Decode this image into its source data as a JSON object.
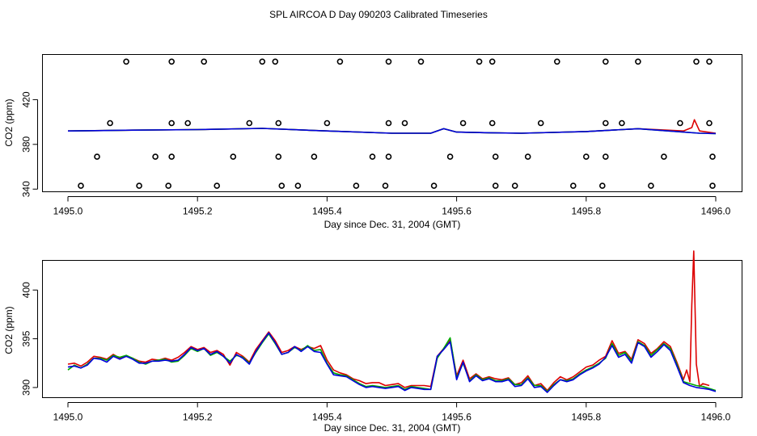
{
  "figure_title": "SPL AIRCOA D  Day 090203  Calibrated Timeseries",
  "colors": {
    "red": "#dd0000",
    "green": "#00aa00",
    "blue": "#0000dd",
    "frame": "#000000"
  },
  "chart_data": [
    {
      "type": "line+scatter",
      "xlabel": "Day since Dec. 31, 2004 (GMT)",
      "ylabel": "CO2 (ppm)",
      "xlim": [
        1495.0,
        1496.0
      ],
      "ylim": [
        338,
        460
      ],
      "xticks": [
        1495.0,
        1495.2,
        1495.4,
        1495.6,
        1495.8,
        1496.0
      ],
      "xtick_labels": [
        "1495.0",
        "1495.2",
        "1495.4",
        "1495.6",
        "1495.8",
        "1496.0"
      ],
      "yticks": [
        340,
        380,
        420
      ],
      "ytick_labels": [
        "340",
        "380",
        "420"
      ],
      "series": [
        {
          "name": "red",
          "color": "#dd0000",
          "x": [
            1495.0,
            1495.1,
            1495.2,
            1495.3,
            1495.4,
            1495.5,
            1495.56,
            1495.58,
            1495.6,
            1495.65,
            1495.7,
            1495.8,
            1495.88,
            1495.95,
            1495.963,
            1495.967,
            1495.975,
            1496.0
          ],
          "y": [
            392,
            392.7,
            393.2,
            394.3,
            392,
            390,
            390,
            394,
            391,
            390.4,
            390,
            391.5,
            394,
            392,
            395,
            402,
            392,
            390
          ]
        },
        {
          "name": "green",
          "color": "#00aa00",
          "x": [
            1495.0,
            1495.1,
            1495.2,
            1495.3,
            1495.4,
            1495.5,
            1495.56,
            1495.58,
            1495.6,
            1495.65,
            1495.7,
            1495.8,
            1495.88,
            1495.95,
            1495.975,
            1496.0
          ],
          "y": [
            392,
            392.7,
            393.2,
            394.3,
            392,
            390,
            390,
            394,
            391,
            390.4,
            390,
            391.5,
            394,
            391,
            390,
            389.7
          ]
        },
        {
          "name": "blue",
          "color": "#0000dd",
          "x": [
            1495.0,
            1495.1,
            1495.2,
            1495.3,
            1495.4,
            1495.5,
            1495.56,
            1495.58,
            1495.6,
            1495.65,
            1495.7,
            1495.8,
            1495.88,
            1495.95,
            1495.975,
            1496.0
          ],
          "y": [
            392,
            392.7,
            393.2,
            394.3,
            392,
            390,
            390,
            394,
            391,
            390.4,
            390,
            391.5,
            394,
            391,
            390,
            389.7
          ]
        }
      ],
      "markers": {
        "x": [
          1495.09,
          1495.16,
          1495.21,
          1495.3,
          1495.32,
          1495.42,
          1495.495,
          1495.545,
          1495.635,
          1495.655,
          1495.755,
          1495.83,
          1495.88,
          1495.97,
          1495.99,
          1495.065,
          1495.16,
          1495.185,
          1495.28,
          1495.325,
          1495.4,
          1495.495,
          1495.52,
          1495.61,
          1495.655,
          1495.73,
          1495.83,
          1495.855,
          1495.945,
          1495.99,
          1495.045,
          1495.135,
          1495.16,
          1495.255,
          1495.325,
          1495.38,
          1495.47,
          1495.495,
          1495.59,
          1495.66,
          1495.71,
          1495.8,
          1495.83,
          1495.92,
          1495.995,
          1495.02,
          1495.11,
          1495.155,
          1495.23,
          1495.33,
          1495.355,
          1495.445,
          1495.49,
          1495.565,
          1495.66,
          1495.69,
          1495.78,
          1495.825,
          1495.9,
          1495.995
        ],
        "y": [
          454,
          454,
          454,
          454,
          454,
          454,
          454,
          454,
          454,
          454,
          454,
          454,
          454,
          454,
          454,
          399,
          399,
          399,
          399,
          399,
          399,
          399,
          399,
          399,
          399,
          399,
          399,
          399,
          399,
          399,
          369,
          369,
          369,
          369,
          369,
          369,
          369,
          369,
          369,
          369,
          369,
          369,
          369,
          369,
          369,
          343,
          343,
          343,
          343,
          343,
          343,
          343,
          343,
          343,
          343,
          343,
          343,
          343,
          343,
          343
        ]
      }
    },
    {
      "type": "line",
      "xlabel": "Day since Dec. 31, 2004 (GMT)",
      "ylabel": "CO2 (ppm)",
      "xlim": [
        1495.0,
        1496.0
      ],
      "ylim": [
        389,
        403
      ],
      "xticks": [
        1495.0,
        1495.2,
        1495.4,
        1495.6,
        1495.8,
        1496.0
      ],
      "xtick_labels": [
        "1495.0",
        "1495.2",
        "1495.4",
        "1495.6",
        "1495.8",
        "1496.0"
      ],
      "yticks": [
        390,
        395,
        400
      ],
      "ytick_labels": [
        "390",
        "395",
        "400"
      ],
      "series": [
        {
          "name": "red",
          "color": "#dd0000",
          "x": [
            1495.0,
            1495.01,
            1495.02,
            1495.03,
            1495.04,
            1495.05,
            1495.06,
            1495.07,
            1495.08,
            1495.09,
            1495.1,
            1495.11,
            1495.12,
            1495.13,
            1495.14,
            1495.15,
            1495.16,
            1495.17,
            1495.18,
            1495.19,
            1495.2,
            1495.21,
            1495.22,
            1495.23,
            1495.24,
            1495.25,
            1495.26,
            1495.27,
            1495.28,
            1495.29,
            1495.3,
            1495.31,
            1495.32,
            1495.33,
            1495.34,
            1495.35,
            1495.36,
            1495.37,
            1495.38,
            1495.39,
            1495.4,
            1495.41,
            1495.42,
            1495.43,
            1495.44,
            1495.45,
            1495.46,
            1495.47,
            1495.48,
            1495.49,
            1495.5,
            1495.51,
            1495.52,
            1495.53,
            1495.54,
            1495.55,
            1495.56,
            1495.57,
            1495.58,
            1495.59,
            1495.6,
            1495.61,
            1495.62,
            1495.63,
            1495.64,
            1495.65,
            1495.66,
            1495.67,
            1495.68,
            1495.69,
            1495.7,
            1495.71,
            1495.72,
            1495.73,
            1495.74,
            1495.75,
            1495.76,
            1495.77,
            1495.78,
            1495.79,
            1495.8,
            1495.81,
            1495.82,
            1495.83,
            1495.84,
            1495.85,
            1495.86,
            1495.87,
            1495.88,
            1495.89,
            1495.9,
            1495.91,
            1495.92,
            1495.93,
            1495.94,
            1495.95,
            1495.955,
            1495.96,
            1495.963,
            1495.966,
            1495.97,
            1495.975,
            1495.98,
            1495.99
          ],
          "y": [
            392.4,
            392.5,
            392.2,
            392.6,
            393.2,
            393.1,
            392.9,
            393.4,
            393.0,
            393.2,
            393.0,
            392.7,
            392.6,
            392.9,
            392.8,
            393.0,
            392.8,
            393.1,
            393.6,
            394.2,
            393.9,
            394.1,
            393.6,
            393.8,
            393.4,
            392.3,
            393.6,
            393.2,
            392.6,
            393.9,
            394.8,
            395.7,
            394.8,
            393.6,
            393.8,
            394.2,
            393.9,
            394.2,
            394.0,
            394.3,
            392.8,
            391.8,
            391.5,
            391.3,
            390.9,
            390.7,
            390.4,
            390.5,
            390.5,
            390.2,
            390.3,
            390.4,
            390.0,
            390.2,
            390.2,
            390.2,
            390.1,
            393.2,
            394.0,
            394.9,
            391.2,
            392.8,
            390.9,
            391.4,
            390.9,
            391.1,
            390.9,
            390.8,
            391.0,
            390.3,
            390.5,
            391.2,
            390.2,
            390.4,
            389.7,
            390.5,
            391.1,
            390.8,
            391.1,
            391.6,
            392.1,
            392.3,
            392.8,
            393.2,
            394.8,
            393.5,
            393.7,
            392.9,
            394.9,
            394.5,
            393.5,
            394.0,
            394.7,
            394.2,
            392.6,
            390.8,
            391.8,
            390.6,
            398.5,
            404.0,
            392.4,
            390.1,
            390.4,
            390.2
          ]
        },
        {
          "name": "green",
          "color": "#00aa00",
          "x": [
            1495.0,
            1495.01,
            1495.02,
            1495.03,
            1495.04,
            1495.05,
            1495.06,
            1495.07,
            1495.08,
            1495.09,
            1495.1,
            1495.11,
            1495.12,
            1495.13,
            1495.14,
            1495.15,
            1495.16,
            1495.17,
            1495.18,
            1495.19,
            1495.2,
            1495.21,
            1495.22,
            1495.23,
            1495.24,
            1495.25,
            1495.26,
            1495.27,
            1495.28,
            1495.29,
            1495.3,
            1495.31,
            1495.32,
            1495.33,
            1495.34,
            1495.35,
            1495.36,
            1495.37,
            1495.38,
            1495.39,
            1495.4,
            1495.41,
            1495.42,
            1495.43,
            1495.44,
            1495.45,
            1495.46,
            1495.47,
            1495.48,
            1495.49,
            1495.5,
            1495.51,
            1495.52,
            1495.53,
            1495.54,
            1495.55,
            1495.56,
            1495.57,
            1495.58,
            1495.59,
            1495.6,
            1495.61,
            1495.62,
            1495.63,
            1495.64,
            1495.65,
            1495.66,
            1495.67,
            1495.68,
            1495.69,
            1495.7,
            1495.71,
            1495.72,
            1495.73,
            1495.74,
            1495.75,
            1495.76,
            1495.77,
            1495.78,
            1495.79,
            1495.8,
            1495.81,
            1495.82,
            1495.83,
            1495.84,
            1495.85,
            1495.86,
            1495.87,
            1495.88,
            1495.89,
            1495.9,
            1495.91,
            1495.92,
            1495.93,
            1495.94,
            1495.95,
            1495.96,
            1495.97,
            1495.98,
            1495.99,
            1496.0
          ],
          "y": [
            391.8,
            392.3,
            392.0,
            392.4,
            393.0,
            393.0,
            392.8,
            393.3,
            393.1,
            393.3,
            393.0,
            392.6,
            392.4,
            392.7,
            392.8,
            392.9,
            392.6,
            392.7,
            393.3,
            394.0,
            393.7,
            394.0,
            393.3,
            393.6,
            393.2,
            392.7,
            393.3,
            393.1,
            392.5,
            393.6,
            394.6,
            395.5,
            394.5,
            393.4,
            393.6,
            394.1,
            393.8,
            394.3,
            393.8,
            393.9,
            392.5,
            391.5,
            391.3,
            391.2,
            390.8,
            390.4,
            390.1,
            390.2,
            390.1,
            390.0,
            390.1,
            390.2,
            389.8,
            390.1,
            390.0,
            389.9,
            389.8,
            393.0,
            394.0,
            395.1,
            391.0,
            392.5,
            390.7,
            391.3,
            390.8,
            391.0,
            390.7,
            390.7,
            390.9,
            390.3,
            390.3,
            391.0,
            390.2,
            390.2,
            389.6,
            390.3,
            390.8,
            390.7,
            390.9,
            391.4,
            391.8,
            392.1,
            392.5,
            393.0,
            394.5,
            393.3,
            393.6,
            392.7,
            394.7,
            394.3,
            393.3,
            393.9,
            394.5,
            394.0,
            392.4,
            390.6,
            390.4,
            390.2,
            390.1,
            389.9,
            389.7
          ]
        },
        {
          "name": "blue",
          "color": "#0000dd",
          "x": [
            1495.0,
            1495.01,
            1495.02,
            1495.03,
            1495.04,
            1495.05,
            1495.06,
            1495.07,
            1495.08,
            1495.09,
            1495.1,
            1495.11,
            1495.12,
            1495.13,
            1495.14,
            1495.15,
            1495.16,
            1495.17,
            1495.18,
            1495.19,
            1495.2,
            1495.21,
            1495.22,
            1495.23,
            1495.24,
            1495.25,
            1495.26,
            1495.27,
            1495.28,
            1495.29,
            1495.3,
            1495.31,
            1495.32,
            1495.33,
            1495.34,
            1495.35,
            1495.36,
            1495.37,
            1495.38,
            1495.39,
            1495.4,
            1495.41,
            1495.42,
            1495.43,
            1495.44,
            1495.45,
            1495.46,
            1495.47,
            1495.48,
            1495.49,
            1495.5,
            1495.51,
            1495.52,
            1495.53,
            1495.54,
            1495.55,
            1495.56,
            1495.57,
            1495.58,
            1495.59,
            1495.6,
            1495.61,
            1495.62,
            1495.63,
            1495.64,
            1495.65,
            1495.66,
            1495.67,
            1495.68,
            1495.69,
            1495.7,
            1495.71,
            1495.72,
            1495.73,
            1495.74,
            1495.75,
            1495.76,
            1495.77,
            1495.78,
            1495.79,
            1495.8,
            1495.81,
            1495.82,
            1495.83,
            1495.84,
            1495.85,
            1495.86,
            1495.87,
            1495.88,
            1495.89,
            1495.9,
            1495.91,
            1495.92,
            1495.93,
            1495.94,
            1495.95,
            1495.96,
            1495.97,
            1495.98,
            1495.99,
            1496.0
          ],
          "y": [
            392.1,
            392.2,
            392.0,
            392.3,
            393.0,
            392.9,
            392.6,
            393.2,
            392.9,
            393.2,
            392.9,
            392.5,
            392.5,
            392.7,
            392.7,
            392.8,
            392.7,
            392.8,
            393.4,
            394.1,
            393.8,
            394.0,
            393.4,
            393.7,
            393.2,
            392.5,
            393.4,
            393.0,
            392.4,
            393.7,
            394.7,
            395.6,
            394.6,
            393.4,
            393.6,
            394.2,
            393.7,
            394.2,
            393.7,
            393.6,
            392.4,
            391.3,
            391.2,
            391.1,
            390.7,
            390.3,
            390.0,
            390.1,
            390.0,
            389.9,
            390.0,
            390.1,
            389.7,
            390.0,
            389.9,
            389.8,
            389.8,
            393.2,
            393.9,
            394.7,
            390.8,
            392.6,
            390.6,
            391.2,
            390.7,
            390.9,
            390.6,
            390.6,
            390.8,
            390.1,
            390.2,
            390.9,
            390.0,
            390.1,
            389.5,
            390.2,
            390.8,
            390.6,
            390.8,
            391.3,
            391.7,
            392.0,
            392.4,
            393.1,
            394.3,
            393.1,
            393.4,
            392.5,
            394.6,
            394.2,
            393.1,
            393.7,
            394.4,
            393.8,
            392.2,
            390.5,
            390.2,
            390.0,
            389.9,
            389.8,
            389.6
          ]
        }
      ]
    }
  ]
}
